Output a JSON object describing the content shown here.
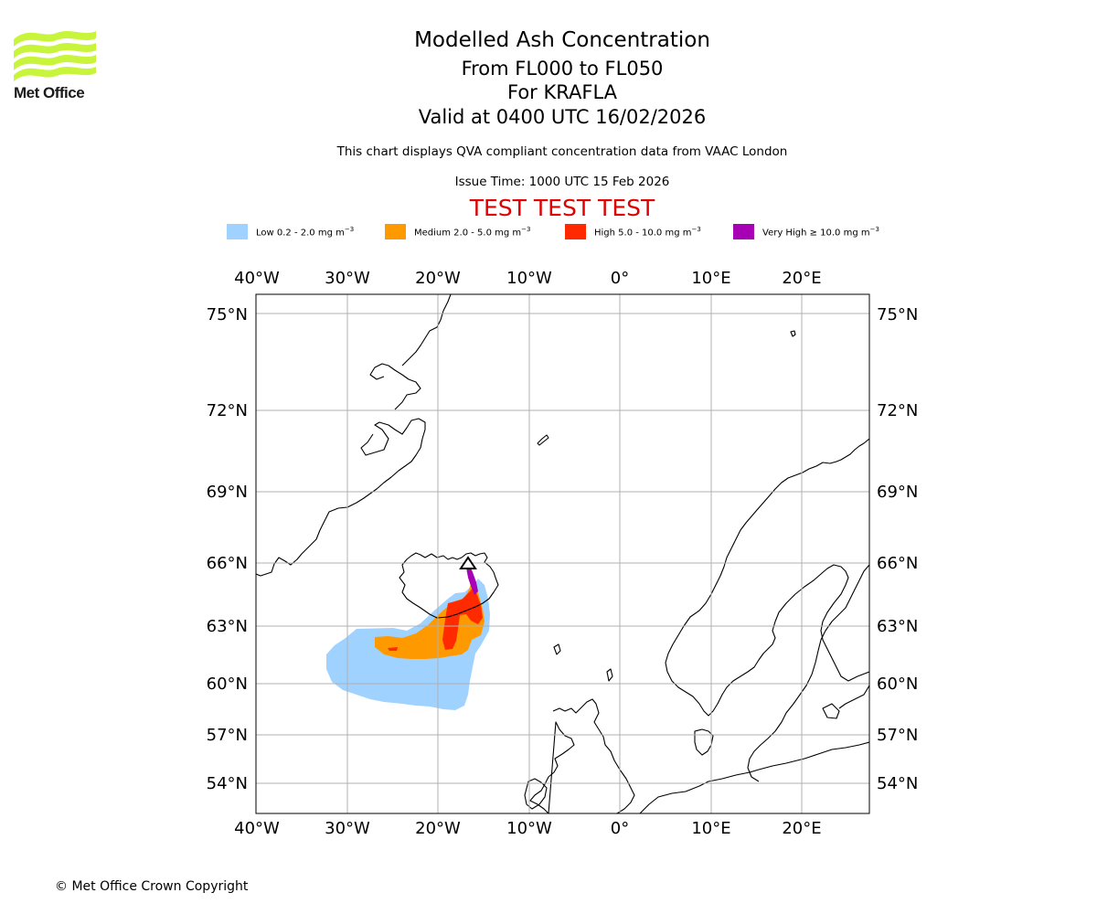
{
  "logo": {
    "text": "Met Office",
    "colors": {
      "waves": "#c8f53c",
      "text": "#1a1a1a"
    }
  },
  "header": {
    "title": "Modelled Ash Concentration",
    "level_range": "From FL000 to FL050",
    "volcano": "For KRAFLA",
    "valid_time": "Valid at 0400 UTC 16/02/2026",
    "description": "This chart displays QVA compliant concentration data from VAAC London",
    "issue_time": "Issue Time: 1000 UTC 15 Feb 2026",
    "test_banner": "TEST TEST TEST"
  },
  "legend": [
    {
      "label": "Low 0.2 - 2.0 mg m",
      "unit_exp": "−3",
      "color": "#a0d2ff"
    },
    {
      "label": "Medium 2.0 - 5.0 mg m",
      "unit_exp": "−3",
      "color": "#ff9900"
    },
    {
      "label": "High 5.0 - 10.0 mg m",
      "unit_exp": "−3",
      "color": "#ff2a00"
    },
    {
      "label": "Very High  ≥  10.0 mg m",
      "unit_exp": "−3",
      "color": "#a800b4"
    }
  ],
  "map": {
    "lon_labels": [
      "40°W",
      "30°W",
      "20°W",
      "10°W",
      "0°",
      "10°E",
      "20°E"
    ],
    "lat_labels": [
      "75°N",
      "72°N",
      "69°N",
      "66°N",
      "63°N",
      "60°N",
      "57°N",
      "54°N"
    ],
    "gridlines": true,
    "volcano_symbol": "triangle"
  },
  "footer": {
    "copyright": "© Met Office Crown Copyright"
  }
}
